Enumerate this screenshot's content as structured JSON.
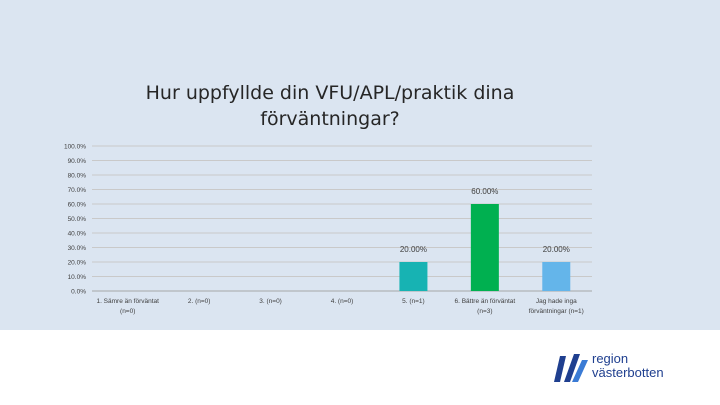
{
  "chart_data": {
    "type": "bar",
    "title_lines": [
      "Hur uppfyllde din VFU/APL/praktik dina",
      "förväntningar?"
    ],
    "categories": [
      [
        "1. Sämre än förväntat",
        "(n=0)"
      ],
      [
        "2. (n=0)"
      ],
      [
        "3. (n=0)"
      ],
      [
        "4. (n=0)"
      ],
      [
        "5. (n=1)"
      ],
      [
        "6. Bättre än förväntat",
        "(n=3)"
      ],
      [
        "Jag hade inga",
        "förväntningar (n=1)"
      ]
    ],
    "values": [
      0,
      0,
      0,
      0,
      20,
      60,
      20
    ],
    "data_labels": [
      "",
      "",
      "",
      "",
      "20.00%",
      "60.00%",
      "20.00%"
    ],
    "bar_colors": [
      "#4bacc6",
      "#4bacc6",
      "#4bacc6",
      "#4bacc6",
      "#17b3b3",
      "#00b050",
      "#64b5ea"
    ],
    "yticks": [
      "0.0%",
      "10.0%",
      "20.0%",
      "30.0%",
      "40.0%",
      "50.0%",
      "60.0%",
      "70.0%",
      "80.0%",
      "90.0%",
      "100.0%"
    ],
    "ylim": [
      0,
      100
    ],
    "grid": true,
    "legend": "none"
  },
  "logo": {
    "line1": "region",
    "line2": "västerbotten",
    "color": "#1f3f8f"
  }
}
